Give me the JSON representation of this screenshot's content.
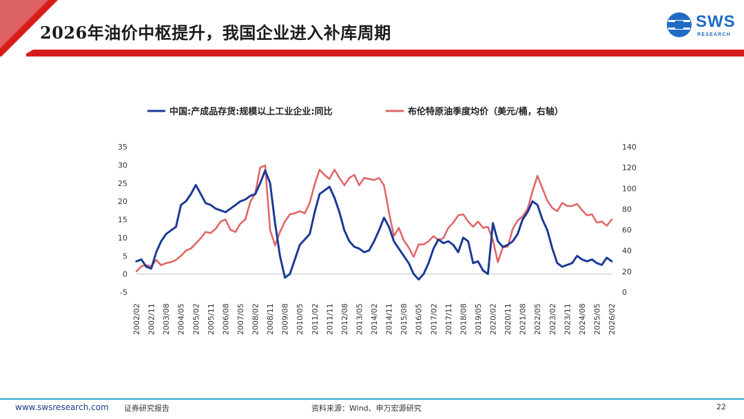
{
  "slide": {
    "title": "2026年油价中枢提升，我国企业进入补库周期",
    "logo_text": "SWS",
    "logo_sub": "RESEARCH",
    "footer_url": "www.swsresearch.com",
    "footer_tag": "证券研究报告",
    "footer_source": "资料来源：Wind、申万宏源研究",
    "page_number": "22",
    "colors": {
      "header_red": "#d71c1c",
      "accent_blue": "#1f6cc4",
      "footer_line": "#2fa4c7"
    }
  },
  "chart_data": {
    "type": "line",
    "title": "",
    "xlabel": "",
    "ylabel": "",
    "y_left_lim": [
      -5,
      35
    ],
    "y_left_ticks": [
      "35",
      "30",
      "25",
      "20",
      "15",
      "10",
      "5",
      "0",
      "-5"
    ],
    "y_right_lim": [
      0,
      140
    ],
    "y_right_ticks": [
      "140",
      "120",
      "100",
      "80",
      "60",
      "40",
      "20",
      "0"
    ],
    "legend_position": "top",
    "grid": false,
    "x_tick_labels": [
      "2002/02",
      "2002/11",
      "2003/08",
      "2004/05",
      "2005/02",
      "2005/11",
      "2006/08",
      "2007/05",
      "2008/02",
      "2008/11",
      "2009/08",
      "2010/05",
      "2011/02",
      "2011/11",
      "2012/08",
      "2013/05",
      "2014/02",
      "2014/11",
      "2015/08",
      "2016/05",
      "2017/02",
      "2017/11",
      "2018/08",
      "2019/05",
      "2020/02",
      "2020/11",
      "2021/08",
      "2022/05",
      "2023/02",
      "2023/11",
      "2024/08",
      "2025/05",
      "2026/02"
    ],
    "x_start": "2002/02",
    "x_end": "2026/02",
    "series": [
      {
        "name": "中国:产成品存货:规模以上工业企业:同比",
        "axis": "left",
        "color": "#1a3a96",
        "points": [
          [
            "2002/02",
            3.5
          ],
          [
            "2002/05",
            4
          ],
          [
            "2002/08",
            2
          ],
          [
            "2002/11",
            1.5
          ],
          [
            "2003/02",
            6
          ],
          [
            "2003/05",
            9
          ],
          [
            "2003/08",
            11
          ],
          [
            "2003/11",
            12
          ],
          [
            "2004/02",
            13
          ],
          [
            "2004/05",
            19
          ],
          [
            "2004/08",
            20
          ],
          [
            "2004/11",
            22
          ],
          [
            "2005/02",
            24.5
          ],
          [
            "2005/05",
            22
          ],
          [
            "2005/08",
            19.5
          ],
          [
            "2005/11",
            19
          ],
          [
            "2006/02",
            18
          ],
          [
            "2006/05",
            17.5
          ],
          [
            "2006/08",
            17
          ],
          [
            "2006/11",
            18
          ],
          [
            "2007/02",
            19
          ],
          [
            "2007/05",
            20
          ],
          [
            "2007/08",
            20.5
          ],
          [
            "2007/11",
            21.5
          ],
          [
            "2008/02",
            22
          ],
          [
            "2008/05",
            25
          ],
          [
            "2008/08",
            28.5
          ],
          [
            "2008/11",
            25
          ],
          [
            "2009/02",
            14
          ],
          [
            "2009/05",
            5
          ],
          [
            "2009/08",
            -1
          ],
          [
            "2009/11",
            0
          ],
          [
            "2010/02",
            4
          ],
          [
            "2010/05",
            8
          ],
          [
            "2010/08",
            9.5
          ],
          [
            "2010/11",
            11
          ],
          [
            "2011/02",
            17
          ],
          [
            "2011/05",
            22
          ],
          [
            "2011/08",
            23
          ],
          [
            "2011/11",
            24
          ],
          [
            "2012/02",
            21
          ],
          [
            "2012/05",
            17
          ],
          [
            "2012/08",
            12
          ],
          [
            "2012/11",
            9
          ],
          [
            "2013/02",
            7.5
          ],
          [
            "2013/05",
            7
          ],
          [
            "2013/08",
            6
          ],
          [
            "2013/11",
            6.5
          ],
          [
            "2014/02",
            9
          ],
          [
            "2014/05",
            12
          ],
          [
            "2014/08",
            15.5
          ],
          [
            "2014/11",
            13
          ],
          [
            "2015/02",
            9
          ],
          [
            "2015/05",
            7
          ],
          [
            "2015/08",
            5
          ],
          [
            "2015/11",
            3
          ],
          [
            "2016/02",
            0
          ],
          [
            "2016/05",
            -1.5
          ],
          [
            "2016/08",
            0
          ],
          [
            "2016/11",
            3
          ],
          [
            "2017/02",
            7
          ],
          [
            "2017/05",
            9.5
          ],
          [
            "2017/08",
            8.5
          ],
          [
            "2017/11",
            9
          ],
          [
            "2018/02",
            8
          ],
          [
            "2018/05",
            6
          ],
          [
            "2018/08",
            10
          ],
          [
            "2018/11",
            9
          ],
          [
            "2019/02",
            3
          ],
          [
            "2019/05",
            3.5
          ],
          [
            "2019/08",
            1
          ],
          [
            "2019/11",
            0
          ],
          [
            "2020/02",
            14
          ],
          [
            "2020/05",
            9
          ],
          [
            "2020/08",
            7.5
          ],
          [
            "2020/11",
            8
          ],
          [
            "2021/02",
            9
          ],
          [
            "2021/05",
            11
          ],
          [
            "2021/08",
            15
          ],
          [
            "2021/11",
            17
          ],
          [
            "2022/02",
            20
          ],
          [
            "2022/05",
            19
          ],
          [
            "2022/08",
            15
          ],
          [
            "2022/11",
            12
          ],
          [
            "2023/02",
            7
          ],
          [
            "2023/05",
            3
          ],
          [
            "2023/08",
            2
          ],
          [
            "2023/11",
            2.5
          ],
          [
            "2024/02",
            3
          ],
          [
            "2024/05",
            5
          ],
          [
            "2024/08",
            4
          ],
          [
            "2024/11",
            3.5
          ],
          [
            "2025/02",
            4
          ],
          [
            "2025/05",
            3
          ],
          [
            "2025/08",
            2.5
          ],
          [
            "2025/11",
            4.5
          ],
          [
            "2026/02",
            3.5
          ]
        ]
      },
      {
        "name": "布伦特原油季度均价（美元/桶，右轴）",
        "axis": "right",
        "color": "#e06666",
        "points": [
          [
            "2002/02",
            20
          ],
          [
            "2002/05",
            25
          ],
          [
            "2002/08",
            26
          ],
          [
            "2002/11",
            25
          ],
          [
            "2003/02",
            31
          ],
          [
            "2003/05",
            26
          ],
          [
            "2003/08",
            28
          ],
          [
            "2003/11",
            29
          ],
          [
            "2004/02",
            31
          ],
          [
            "2004/05",
            35
          ],
          [
            "2004/08",
            40
          ],
          [
            "2004/11",
            42
          ],
          [
            "2005/02",
            47
          ],
          [
            "2005/05",
            52
          ],
          [
            "2005/08",
            58
          ],
          [
            "2005/11",
            57
          ],
          [
            "2006/02",
            61
          ],
          [
            "2006/05",
            68
          ],
          [
            "2006/08",
            70
          ],
          [
            "2006/11",
            60
          ],
          [
            "2007/02",
            58
          ],
          [
            "2007/05",
            66
          ],
          [
            "2007/08",
            70
          ],
          [
            "2007/11",
            87
          ],
          [
            "2008/02",
            95
          ],
          [
            "2008/05",
            120
          ],
          [
            "2008/08",
            122
          ],
          [
            "2008/11",
            60
          ],
          [
            "2009/02",
            45
          ],
          [
            "2009/05",
            58
          ],
          [
            "2009/08",
            68
          ],
          [
            "2009/11",
            75
          ],
          [
            "2010/02",
            76
          ],
          [
            "2010/05",
            78
          ],
          [
            "2010/08",
            76
          ],
          [
            "2010/11",
            86
          ],
          [
            "2011/02",
            104
          ],
          [
            "2011/05",
            118
          ],
          [
            "2011/08",
            113
          ],
          [
            "2011/11",
            109
          ],
          [
            "2012/02",
            118
          ],
          [
            "2012/05",
            110
          ],
          [
            "2012/08",
            103
          ],
          [
            "2012/11",
            110
          ],
          [
            "2013/02",
            113
          ],
          [
            "2013/05",
            103
          ],
          [
            "2013/08",
            110
          ],
          [
            "2013/11",
            109
          ],
          [
            "2014/02",
            108
          ],
          [
            "2014/05",
            110
          ],
          [
            "2014/08",
            103
          ],
          [
            "2014/11",
            77
          ],
          [
            "2015/02",
            54
          ],
          [
            "2015/05",
            62
          ],
          [
            "2015/08",
            50
          ],
          [
            "2015/11",
            43
          ],
          [
            "2016/02",
            34
          ],
          [
            "2016/05",
            46
          ],
          [
            "2016/08",
            46
          ],
          [
            "2016/11",
            49
          ],
          [
            "2017/02",
            54
          ],
          [
            "2017/05",
            50
          ],
          [
            "2017/08",
            52
          ],
          [
            "2017/11",
            62
          ],
          [
            "2018/02",
            67
          ],
          [
            "2018/05",
            74
          ],
          [
            "2018/08",
            75
          ],
          [
            "2018/11",
            68
          ],
          [
            "2019/02",
            63
          ],
          [
            "2019/05",
            68
          ],
          [
            "2019/08",
            62
          ],
          [
            "2019/11",
            63
          ],
          [
            "2020/02",
            50
          ],
          [
            "2020/05",
            29
          ],
          [
            "2020/08",
            43
          ],
          [
            "2020/11",
            44
          ],
          [
            "2021/02",
            61
          ],
          [
            "2021/05",
            69
          ],
          [
            "2021/08",
            73
          ],
          [
            "2021/11",
            80
          ],
          [
            "2022/02",
            97
          ],
          [
            "2022/05",
            112
          ],
          [
            "2022/08",
            100
          ],
          [
            "2022/11",
            88
          ],
          [
            "2023/02",
            81
          ],
          [
            "2023/05",
            78
          ],
          [
            "2023/08",
            86
          ],
          [
            "2023/11",
            83
          ],
          [
            "2024/02",
            83
          ],
          [
            "2024/05",
            85
          ],
          [
            "2024/08",
            79
          ],
          [
            "2024/11",
            74
          ],
          [
            "2025/02",
            75
          ],
          [
            "2025/05",
            67
          ],
          [
            "2025/08",
            68
          ],
          [
            "2025/11",
            64
          ],
          [
            "2026/02",
            70
          ]
        ]
      }
    ]
  }
}
